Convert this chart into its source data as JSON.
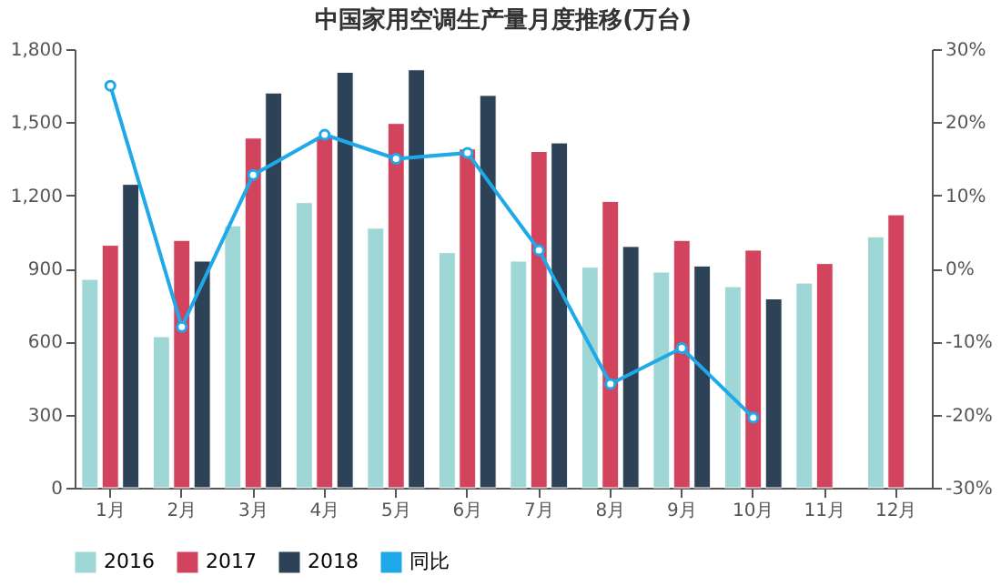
{
  "chart_data": {
    "type": "bar",
    "title": "中国家用空调生产量月度推移(万台)",
    "categories": [
      "1月",
      "2月",
      "3月",
      "4月",
      "5月",
      "6月",
      "7月",
      "8月",
      "9月",
      "10月",
      "11月",
      "12月"
    ],
    "series": [
      {
        "name": "2016",
        "color": "#9fd6d6",
        "values": [
          855,
          620,
          1075,
          1170,
          1065,
          965,
          930,
          905,
          885,
          825,
          840,
          1030
        ]
      },
      {
        "name": "2017",
        "color": "#d2435e",
        "values": [
          995,
          1015,
          1435,
          1440,
          1495,
          1390,
          1380,
          1175,
          1015,
          975,
          920,
          1120
        ]
      },
      {
        "name": "2018",
        "color": "#2d4157",
        "values": [
          1245,
          930,
          1620,
          1705,
          1715,
          1610,
          1415,
          990,
          910,
          775,
          null,
          null
        ]
      },
      {
        "name": "同比",
        "type": "line",
        "axis": "y2",
        "color": "#1fa9e8",
        "marker": "circle",
        "values": [
          25,
          -8,
          12.8,
          18.3,
          15,
          15.8,
          2.5,
          -15.8,
          -10.9,
          -20.4,
          null,
          null
        ]
      }
    ],
    "ylim": [
      0,
      1800
    ],
    "yticks": [
      0,
      300,
      600,
      900,
      {
        "value": 1200,
        "label": "1,200"
      },
      {
        "value": 1500,
        "label": "1,500"
      },
      {
        "value": 1800,
        "label": "1,800"
      }
    ],
    "y2lim": [
      -30,
      30
    ],
    "y2ticks": [
      {
        "value": -30,
        "label": "-30%"
      },
      {
        "value": -20,
        "label": "-20%"
      },
      {
        "value": -10,
        "label": "-10%"
      },
      {
        "value": 0,
        "label": "0%"
      },
      {
        "value": 10,
        "label": "10%"
      },
      {
        "value": 20,
        "label": "20%"
      },
      {
        "value": 30,
        "label": "30%"
      }
    ],
    "grid": false,
    "legend": "bottom"
  }
}
